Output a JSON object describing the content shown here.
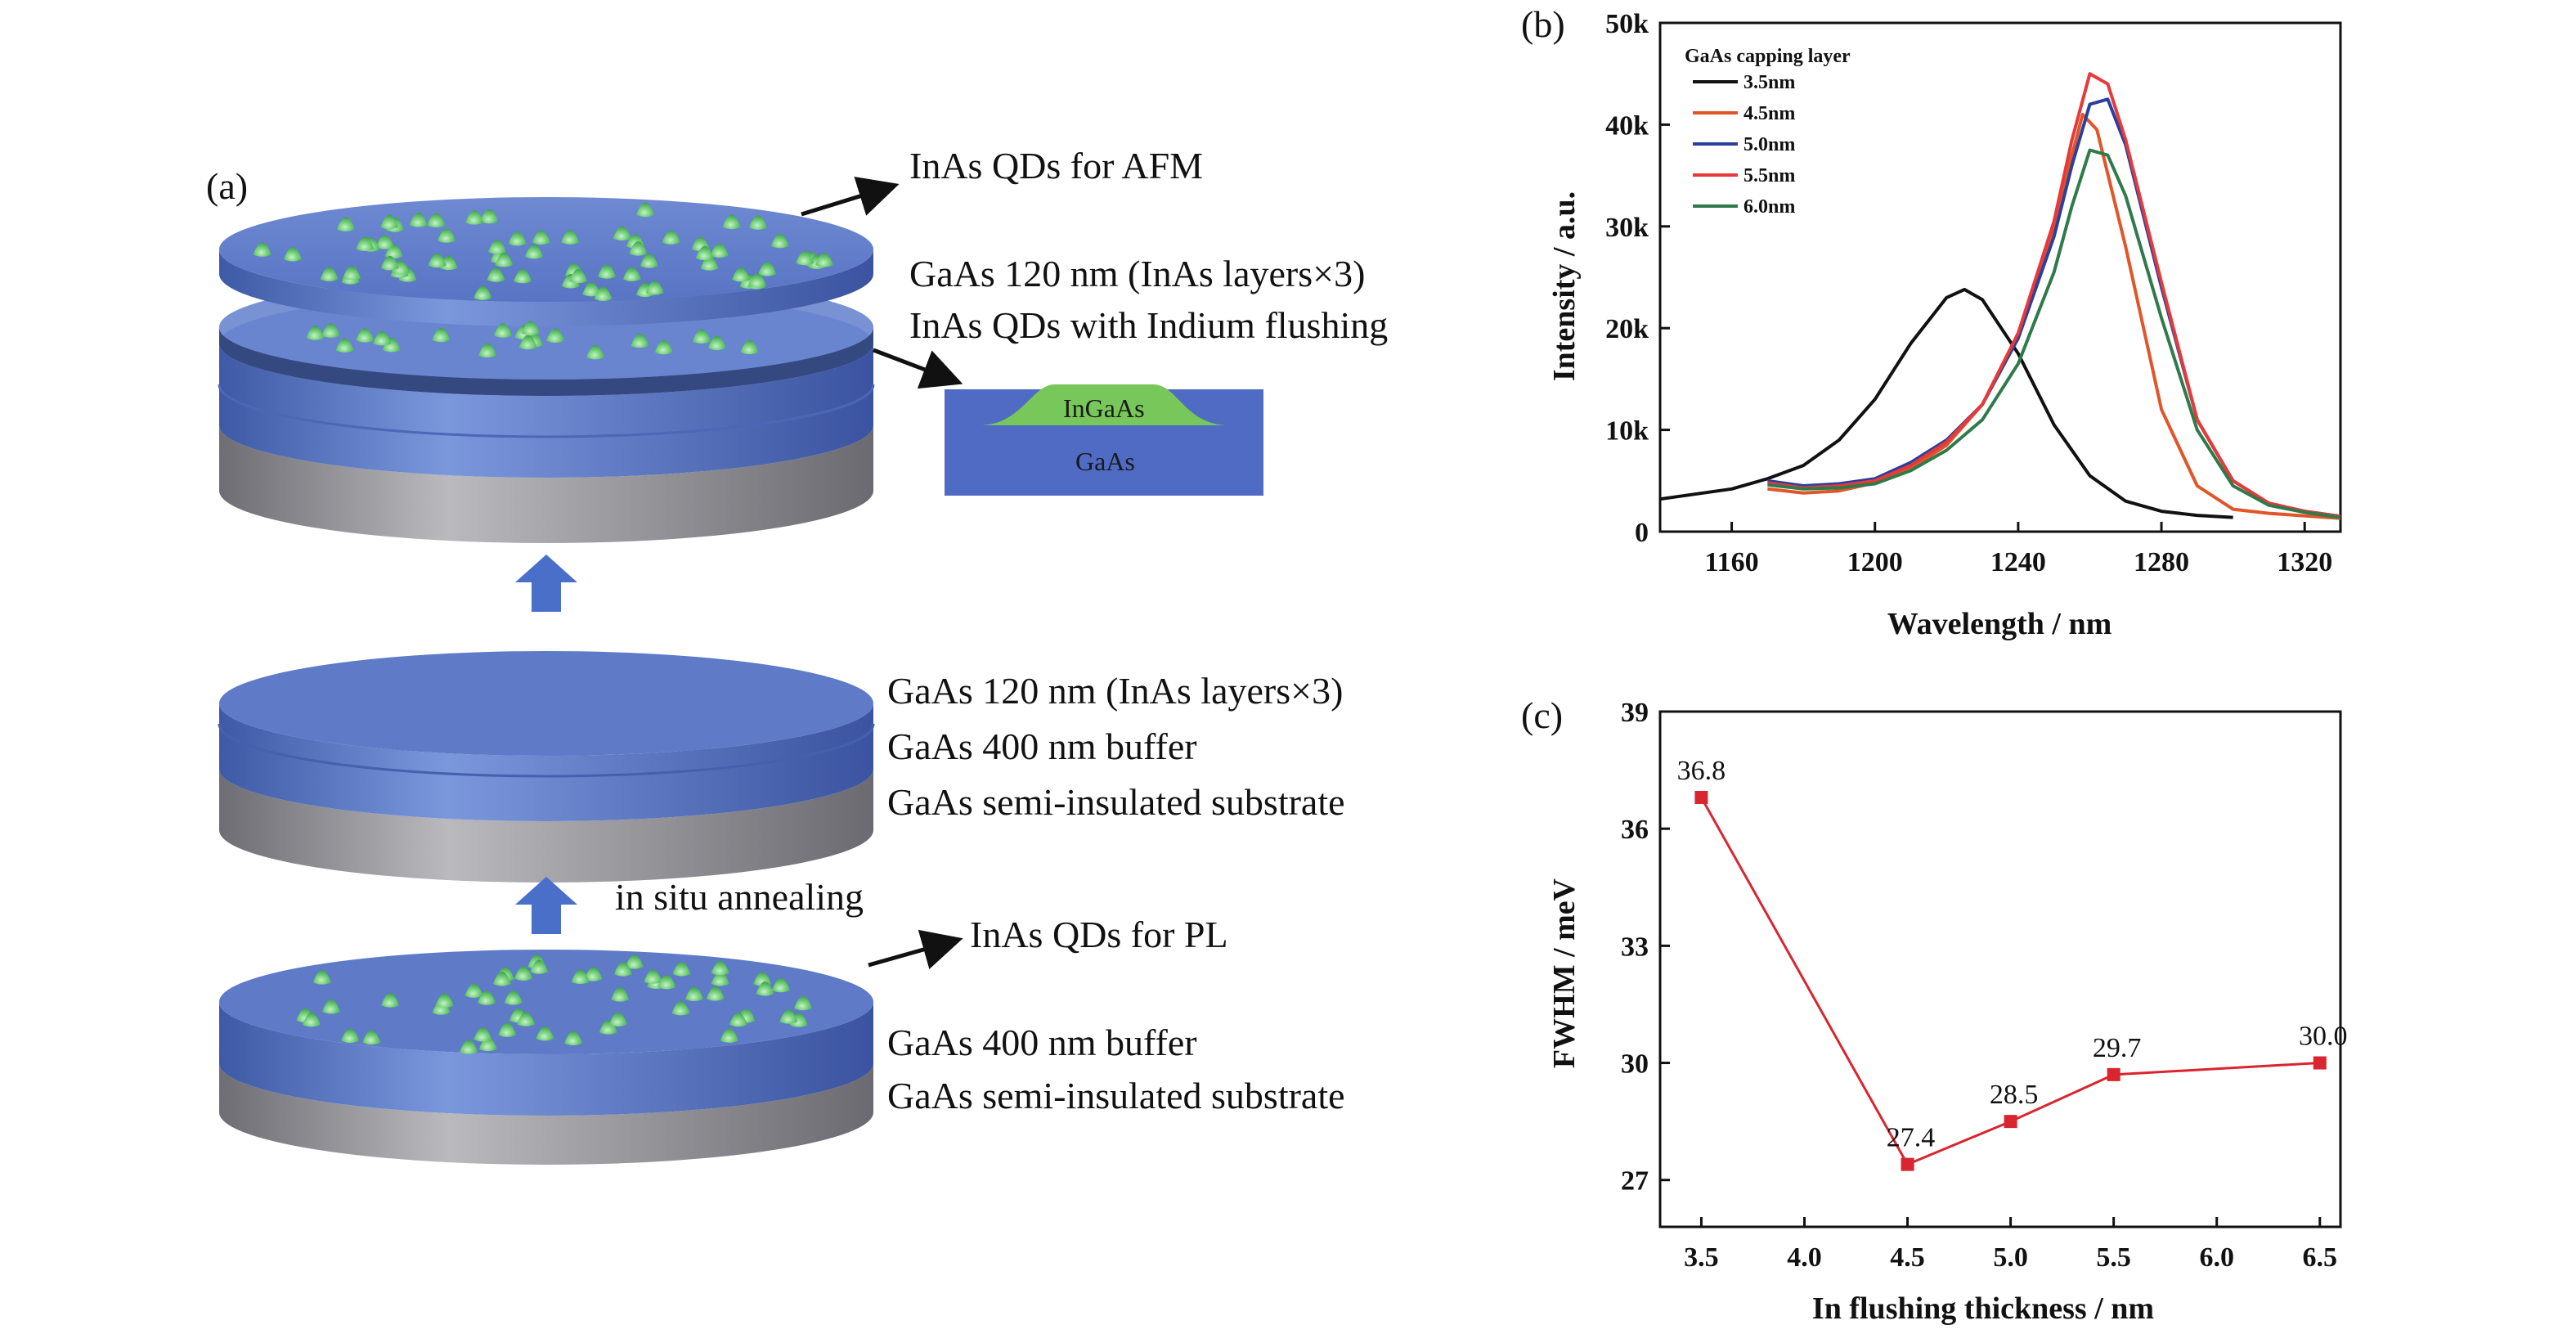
{
  "panel_a": {
    "tag": "(a)",
    "top_stack": {
      "qd_label": "InAs QDs for AFM",
      "line1": "GaAs 120 nm (InAs layers×3)",
      "line2": "InAs QDs with Indium flushing",
      "inset_top": "InGaAs",
      "inset_bottom": "GaAs"
    },
    "middle_stack": {
      "line1": "GaAs 120 nm (InAs layers×3)",
      "line2": "GaAs 400 nm buffer",
      "line3": "GaAs semi-insulated substrate"
    },
    "annealing_label": "in situ annealing",
    "bottom_stack": {
      "qd_label": "InAs QDs for PL",
      "line1": "GaAs 400 nm buffer",
      "line2": "GaAs semi-insulated substrate"
    },
    "colors": {
      "disk_blue": "#5b7ccc",
      "substrate_gray": "#8e8e94",
      "qd_green": "#5fc26a",
      "arrow_blue": "#4a6fc9"
    }
  },
  "chart_data": [
    {
      "tag": "(b)",
      "type": "line",
      "xlabel": "Wavelength / nm",
      "ylabel": "Intensity / a.u.",
      "xlim": [
        1140,
        1330
      ],
      "ylim": [
        0,
        50000
      ],
      "x_ticks": [
        1160,
        1200,
        1240,
        1280,
        1320
      ],
      "x_tick_labels": [
        "1160",
        "1200",
        "1240",
        "1280",
        "1320"
      ],
      "y_ticks": [
        0,
        10000,
        20000,
        30000,
        40000,
        50000
      ],
      "y_tick_labels": [
        "0",
        "10k",
        "20k",
        "30k",
        "40k",
        "50k"
      ],
      "legend_title": "GaAs capping layer",
      "legend_position": "top-left",
      "series": [
        {
          "name": "3.5nm",
          "color": "#111111",
          "x": [
            1140,
            1160,
            1170,
            1180,
            1190,
            1200,
            1210,
            1220,
            1225,
            1230,
            1240,
            1250,
            1260,
            1270,
            1280,
            1290,
            1300
          ],
          "y": [
            3200,
            4200,
            5200,
            6500,
            9000,
            13000,
            18500,
            23000,
            23800,
            22800,
            17500,
            10500,
            5500,
            3000,
            2000,
            1600,
            1400
          ]
        },
        {
          "name": "4.5nm",
          "color": "#e0562a",
          "x": [
            1170,
            1180,
            1190,
            1200,
            1210,
            1220,
            1230,
            1240,
            1250,
            1255,
            1258,
            1262,
            1270,
            1280,
            1290,
            1300,
            1310,
            1330
          ],
          "y": [
            4200,
            3800,
            4000,
            4800,
            6200,
            8500,
            12500,
            19500,
            30000,
            37000,
            41000,
            39500,
            28000,
            12000,
            4500,
            2200,
            1800,
            1300
          ]
        },
        {
          "name": "5.0nm",
          "color": "#2a3f9e",
          "x": [
            1170,
            1180,
            1190,
            1200,
            1210,
            1220,
            1230,
            1240,
            1250,
            1255,
            1260,
            1265,
            1270,
            1280,
            1290,
            1300,
            1310,
            1320,
            1330
          ],
          "y": [
            5000,
            4500,
            4700,
            5200,
            6800,
            9000,
            12500,
            19000,
            29000,
            36000,
            42000,
            42500,
            38000,
            24000,
            11000,
            5000,
            2800,
            2000,
            1500
          ]
        },
        {
          "name": "5.5nm",
          "color": "#e63a3a",
          "x": [
            1170,
            1180,
            1190,
            1200,
            1210,
            1220,
            1230,
            1240,
            1250,
            1255,
            1260,
            1265,
            1270,
            1280,
            1290,
            1300,
            1310,
            1320,
            1330
          ],
          "y": [
            4800,
            4300,
            4500,
            5000,
            6500,
            8800,
            12500,
            19500,
            30500,
            38500,
            45000,
            44000,
            38500,
            24500,
            11000,
            5000,
            2800,
            2000,
            1500
          ]
        },
        {
          "name": "6.0nm",
          "color": "#2f7a4a",
          "x": [
            1170,
            1180,
            1190,
            1200,
            1210,
            1220,
            1230,
            1240,
            1250,
            1255,
            1260,
            1265,
            1270,
            1280,
            1290,
            1300,
            1310,
            1320,
            1330
          ],
          "y": [
            4600,
            4200,
            4300,
            4700,
            6000,
            8000,
            11000,
            16500,
            25500,
            32000,
            37500,
            37000,
            33000,
            21000,
            10000,
            4500,
            2600,
            1900,
            1400
          ]
        }
      ]
    },
    {
      "tag": "(c)",
      "type": "line",
      "xlabel": "In flushing thickness / nm",
      "ylabel": "FWHM / meV",
      "xlim": [
        3.3,
        6.6
      ],
      "ylim": [
        25.8,
        39
      ],
      "x_ticks": [
        3.5,
        4.0,
        4.5,
        5.0,
        5.5,
        6.0,
        6.5
      ],
      "x_tick_labels": [
        "3.5",
        "4.0",
        "4.5",
        "5.0",
        "5.5",
        "6.0",
        "6.5"
      ],
      "y_ticks": [
        27,
        30,
        33,
        36,
        39
      ],
      "y_tick_labels": [
        "27",
        "30",
        "33",
        "36",
        "39"
      ],
      "series": [
        {
          "name": "",
          "color": "#d9252f",
          "x": [
            3.5,
            4.5,
            5.0,
            5.5,
            6.5
          ],
          "y": [
            36.8,
            27.4,
            28.5,
            29.7,
            30.0
          ],
          "labels": [
            "36.8",
            "27.4",
            "28.5",
            "29.7",
            "30.0"
          ]
        }
      ]
    }
  ]
}
